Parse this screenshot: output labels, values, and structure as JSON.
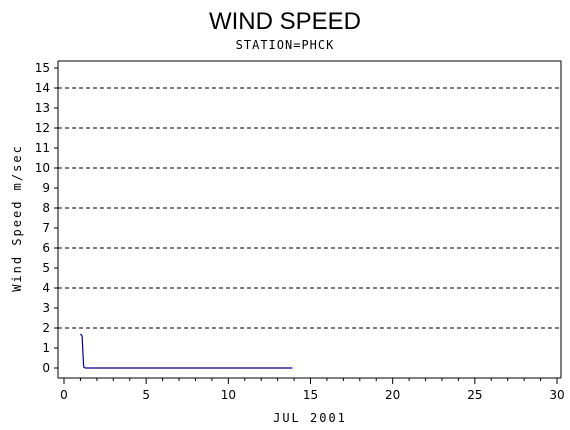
{
  "chart_data": {
    "type": "line",
    "title": "WIND SPEED",
    "subtitle": "STATION=PHCK",
    "xlabel": "JUL 2001",
    "ylabel": "Wind Speed m/sec",
    "xlim": [
      0,
      30
    ],
    "ylim": [
      0,
      15
    ],
    "x_ticks": [
      0,
      5,
      10,
      15,
      20,
      25,
      30
    ],
    "y_ticks": [
      0,
      1,
      2,
      3,
      4,
      5,
      6,
      7,
      8,
      9,
      10,
      11,
      12,
      13,
      14,
      15
    ],
    "grid": {
      "style": "dashed",
      "y_values": [
        2,
        4,
        6,
        8,
        10,
        12,
        14
      ]
    },
    "colors": {
      "line": "#00008b",
      "axis": "#000000",
      "grid": "#000000"
    },
    "series": [
      {
        "x": [
          1.0,
          1.1,
          1.15,
          1.2,
          1.3,
          2,
          5,
          10,
          13.9
        ],
        "y": [
          1.7,
          1.6,
          0.8,
          0.05,
          0,
          0,
          0,
          0,
          0
        ]
      }
    ]
  }
}
